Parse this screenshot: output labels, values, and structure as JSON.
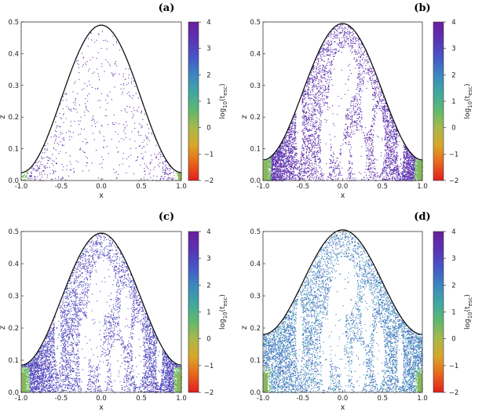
{
  "colorbar": {
    "title": "log10(tesc)",
    "title_main": "log",
    "title_sub": "10",
    "title_rest": "(t",
    "title_sub2": "esc",
    "title_end": ")",
    "ticks": [
      4,
      3,
      2,
      1,
      0,
      -1,
      -2
    ],
    "range": [
      -2,
      4
    ],
    "stops": [
      "#e01e1e",
      "#e8651c",
      "#d9a62a",
      "#a9b84a",
      "#5fb86f",
      "#3fa7a0",
      "#3c86c0",
      "#4755c8",
      "#5a33b5",
      "#6a1f9a"
    ]
  },
  "chart_data": [
    {
      "type": "scatter",
      "panel": "(a)",
      "xlabel": "x",
      "ylabel": "z",
      "xlim": [
        -1.0,
        1.0
      ],
      "ylim": [
        0.0,
        0.5
      ],
      "xticks": [
        "-1.0",
        "-0.5",
        "0.0",
        "0.5",
        "1.0"
      ],
      "yticks": [
        "0.0",
        "0.1",
        "0.2",
        "0.3",
        "0.4",
        "0.5"
      ],
      "boundary": {
        "z_edge": 0.025,
        "z_peak": 0.49
      },
      "dominant_log10_tesc": 3.6,
      "fill_density": 0.05
    },
    {
      "type": "scatter",
      "panel": "(b)",
      "xlabel": "x",
      "ylabel": "z",
      "xlim": [
        -1.0,
        1.0
      ],
      "ylim": [
        0.0,
        0.5
      ],
      "xticks": [
        "-1.0",
        "-0.5",
        "0.0",
        "0.5",
        "1.0"
      ],
      "yticks": [
        "0.0",
        "0.1",
        "0.2",
        "0.3",
        "0.4",
        "0.5"
      ],
      "boundary": {
        "z_edge": 0.065,
        "z_peak": 0.495
      },
      "dominant_log10_tesc": 3.5,
      "fill_density": 0.8
    },
    {
      "type": "scatter",
      "panel": "(c)",
      "xlabel": "x",
      "ylabel": "z",
      "xlim": [
        -1.0,
        1.0
      ],
      "ylim": [
        0.0,
        0.5
      ],
      "xticks": [
        "-1.0",
        "-0.5",
        "0.0",
        "0.5",
        "1.0"
      ],
      "yticks": [
        "0.0",
        "0.1",
        "0.2",
        "0.3",
        "0.4",
        "0.5"
      ],
      "boundary": {
        "z_edge": 0.085,
        "z_peak": 0.495
      },
      "dominant_log10_tesc": 3.0,
      "fill_density": 0.85
    },
    {
      "type": "scatter",
      "panel": "(d)",
      "xlabel": "x",
      "ylabel": "z",
      "xlim": [
        -1.0,
        1.0
      ],
      "ylim": [
        0.0,
        0.5
      ],
      "xticks": [
        "-1.0",
        "-0.5",
        "0.0",
        "0.5",
        "1.0"
      ],
      "yticks": [
        "0.0",
        "0.1",
        "0.2",
        "0.3",
        "0.4",
        "0.5"
      ],
      "boundary": {
        "z_edge": 0.18,
        "z_peak": 0.505
      },
      "dominant_log10_tesc": 2.3,
      "fill_density": 0.9
    }
  ]
}
